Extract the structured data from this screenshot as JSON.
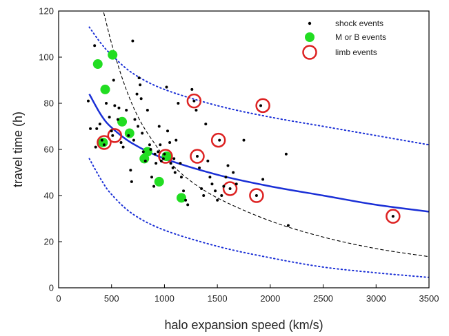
{
  "chart_data": {
    "type": "scatter",
    "xlabel": "halo expansion speed (km/s)",
    "ylabel": "travel time (h)",
    "xlim": [
      0,
      3500
    ],
    "ylim": [
      0,
      120
    ],
    "xticks": [
      0,
      500,
      1000,
      1500,
      2000,
      2500,
      3000,
      3500
    ],
    "yticks": [
      0,
      20,
      40,
      60,
      80,
      100,
      120
    ],
    "legend_position": "top-right",
    "colors": {
      "shock": "#000000",
      "mb": "#22dd22",
      "limb": "#dd2222",
      "fit": "#1a2fd6",
      "bounds": "#1a2fd6",
      "model": "#000000"
    },
    "series": [
      {
        "name": "shock events",
        "marker": "small-black-dot",
        "points": [
          [
            280,
            81
          ],
          [
            300,
            69
          ],
          [
            340,
            105
          ],
          [
            350,
            61
          ],
          [
            360,
            69
          ],
          [
            390,
            71
          ],
          [
            410,
            64
          ],
          [
            430,
            62
          ],
          [
            450,
            80
          ],
          [
            480,
            74
          ],
          [
            500,
            68
          ],
          [
            510,
            66
          ],
          [
            520,
            90
          ],
          [
            530,
            79
          ],
          [
            560,
            73
          ],
          [
            570,
            78
          ],
          [
            590,
            63
          ],
          [
            610,
            61
          ],
          [
            640,
            77
          ],
          [
            660,
            66
          ],
          [
            680,
            51
          ],
          [
            690,
            46
          ],
          [
            700,
            107
          ],
          [
            710,
            64
          ],
          [
            720,
            73
          ],
          [
            740,
            84
          ],
          [
            750,
            70
          ],
          [
            760,
            91
          ],
          [
            770,
            88
          ],
          [
            780,
            82
          ],
          [
            790,
            67
          ],
          [
            800,
            59
          ],
          [
            820,
            55
          ],
          [
            840,
            77
          ],
          [
            860,
            62
          ],
          [
            870,
            60
          ],
          [
            880,
            48
          ],
          [
            900,
            44
          ],
          [
            910,
            58
          ],
          [
            920,
            54
          ],
          [
            940,
            59
          ],
          [
            950,
            70
          ],
          [
            960,
            62
          ],
          [
            970,
            55
          ],
          [
            990,
            56
          ],
          [
            1000,
            58
          ],
          [
            1020,
            87
          ],
          [
            1030,
            68
          ],
          [
            1050,
            63
          ],
          [
            1060,
            54
          ],
          [
            1080,
            52
          ],
          [
            1090,
            56
          ],
          [
            1100,
            50
          ],
          [
            1110,
            64
          ],
          [
            1130,
            80
          ],
          [
            1150,
            54
          ],
          [
            1160,
            48
          ],
          [
            1180,
            42
          ],
          [
            1200,
            38
          ],
          [
            1220,
            36
          ],
          [
            1260,
            86
          ],
          [
            1280,
            81
          ],
          [
            1300,
            77
          ],
          [
            1310,
            57
          ],
          [
            1330,
            52
          ],
          [
            1350,
            43
          ],
          [
            1370,
            40
          ],
          [
            1390,
            71
          ],
          [
            1410,
            55
          ],
          [
            1430,
            48
          ],
          [
            1450,
            45
          ],
          [
            1480,
            42
          ],
          [
            1500,
            38
          ],
          [
            1520,
            64
          ],
          [
            1540,
            40
          ],
          [
            1560,
            44
          ],
          [
            1580,
            48
          ],
          [
            1600,
            53
          ],
          [
            1620,
            43
          ],
          [
            1650,
            50
          ],
          [
            1680,
            45
          ],
          [
            1750,
            64
          ],
          [
            1870,
            40
          ],
          [
            1910,
            79
          ],
          [
            1930,
            47
          ],
          [
            2150,
            58
          ],
          [
            2170,
            27
          ],
          [
            3160,
            31
          ]
        ]
      },
      {
        "name": "M or B events",
        "marker": "green-filled-circle",
        "points": [
          [
            370,
            97
          ],
          [
            440,
            86
          ],
          [
            510,
            101
          ],
          [
            420,
            63
          ],
          [
            600,
            72
          ],
          [
            670,
            67
          ],
          [
            810,
            56
          ],
          [
            840,
            59
          ],
          [
            950,
            46
          ],
          [
            1020,
            57
          ],
          [
            1160,
            39
          ]
        ]
      },
      {
        "name": "limb events",
        "marker": "red-open-circle",
        "points": [
          [
            430,
            63
          ],
          [
            530,
            66
          ],
          [
            1010,
            57
          ],
          [
            1280,
            81
          ],
          [
            1310,
            57
          ],
          [
            1510,
            64
          ],
          [
            1620,
            43
          ],
          [
            1870,
            40
          ],
          [
            1930,
            79
          ],
          [
            3160,
            31
          ]
        ]
      }
    ],
    "curves": [
      {
        "role": "fit",
        "style": "solid-blue",
        "points": [
          [
            290,
            84
          ],
          [
            400,
            75
          ],
          [
            500,
            69.5
          ],
          [
            700,
            62.5
          ],
          [
            1000,
            56
          ],
          [
            1500,
            49
          ],
          [
            2000,
            44
          ],
          [
            2500,
            40
          ],
          [
            3000,
            36
          ],
          [
            3500,
            33
          ]
        ]
      },
      {
        "role": "upper-bound",
        "style": "dotted-blue",
        "points": [
          [
            290,
            113
          ],
          [
            400,
            106
          ],
          [
            500,
            101
          ],
          [
            700,
            93
          ],
          [
            1000,
            86
          ],
          [
            1500,
            79
          ],
          [
            2000,
            74
          ],
          [
            2500,
            70
          ],
          [
            3000,
            66
          ],
          [
            3500,
            62
          ]
        ]
      },
      {
        "role": "lower-bound",
        "style": "dotted-blue",
        "points": [
          [
            290,
            56
          ],
          [
            400,
            47
          ],
          [
            500,
            40.5
          ],
          [
            700,
            32
          ],
          [
            1000,
            25
          ],
          [
            1500,
            18
          ],
          [
            2000,
            13
          ],
          [
            2500,
            9
          ],
          [
            3000,
            6.5
          ],
          [
            3500,
            4.5
          ]
        ]
      },
      {
        "role": "model",
        "style": "dashed-black",
        "points": [
          [
            400,
            124
          ],
          [
            450,
            115
          ],
          [
            500,
            106
          ],
          [
            600,
            91
          ],
          [
            700,
            79
          ],
          [
            800,
            70
          ],
          [
            900,
            63
          ],
          [
            1000,
            57
          ],
          [
            1200,
            48
          ],
          [
            1500,
            39
          ],
          [
            2000,
            29
          ],
          [
            2500,
            22
          ],
          [
            3000,
            17
          ],
          [
            3500,
            13.5
          ]
        ]
      }
    ]
  }
}
